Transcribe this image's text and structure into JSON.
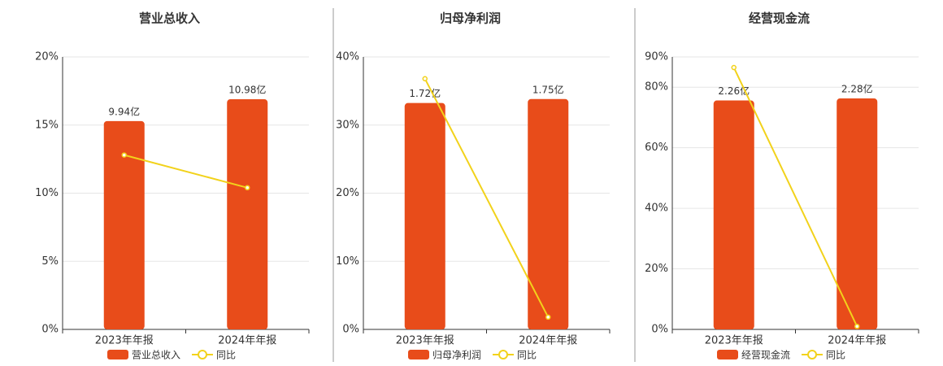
{
  "chart_data": [
    {
      "type": "bar",
      "title": "营业总收入",
      "categories": [
        "2023年年报",
        "2024年年报"
      ],
      "series": [
        {
          "name": "营业总收入",
          "type": "bar",
          "color": "#e84c1a",
          "axis": "y2",
          "values": [
            9.94,
            10.98
          ],
          "value_labels": [
            "9.94亿",
            "10.98亿"
          ]
        },
        {
          "name": "同比",
          "type": "line",
          "color": "#f2d21b",
          "values": [
            12.8,
            10.4
          ]
        }
      ],
      "ylim": [
        0,
        20
      ],
      "yticks": [
        {
          "value": 0,
          "label": "0%"
        },
        {
          "value": 5,
          "label": "5%"
        },
        {
          "value": 10,
          "label": "10%"
        },
        {
          "value": 15,
          "label": "15%"
        },
        {
          "value": 20,
          "label": "20%"
        }
      ],
      "y2lim": [
        0,
        13
      ],
      "grid": true
    },
    {
      "type": "bar",
      "title": "归母净利润",
      "categories": [
        "2023年年报",
        "2024年年报"
      ],
      "series": [
        {
          "name": "归母净利润",
          "type": "bar",
          "color": "#e84c1a",
          "axis": "y2",
          "values": [
            1.72,
            1.75
          ],
          "value_labels": [
            "1.72亿",
            "1.75亿"
          ]
        },
        {
          "name": "同比",
          "type": "line",
          "color": "#f2d21b",
          "values": [
            36.8,
            1.8
          ]
        }
      ],
      "ylim": [
        0,
        40
      ],
      "yticks": [
        {
          "value": 0,
          "label": "0%"
        },
        {
          "value": 10,
          "label": "10%"
        },
        {
          "value": 20,
          "label": "20%"
        },
        {
          "value": 30,
          "label": "30%"
        },
        {
          "value": 40,
          "label": "40%"
        }
      ],
      "y2lim": [
        0,
        2.07
      ],
      "grid": true
    },
    {
      "type": "bar",
      "title": "经营现金流",
      "categories": [
        "2023年年报",
        "2024年年报"
      ],
      "series": [
        {
          "name": "经营现金流",
          "type": "bar",
          "color": "#e84c1a",
          "axis": "y2",
          "values": [
            2.26,
            2.28
          ],
          "value_labels": [
            "2.26亿",
            "2.28亿"
          ]
        },
        {
          "name": "同比",
          "type": "line",
          "color": "#f2d21b",
          "values": [
            86.5,
            1.0
          ]
        }
      ],
      "ylim": [
        0,
        90
      ],
      "yticks": [
        {
          "value": 0,
          "label": "0%"
        },
        {
          "value": 20,
          "label": "20%"
        },
        {
          "value": 40,
          "label": "40%"
        },
        {
          "value": 60,
          "label": "60%"
        },
        {
          "value": 80,
          "label": "80%"
        },
        {
          "value": 90,
          "label": "90%"
        }
      ],
      "y2lim": [
        0,
        2.69
      ],
      "grid": true
    }
  ]
}
